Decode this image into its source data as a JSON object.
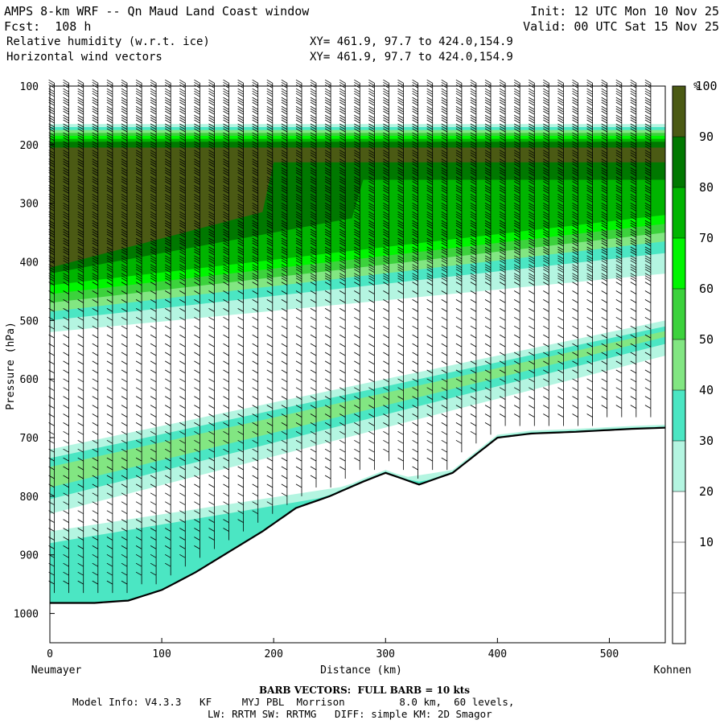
{
  "header": {
    "title": "AMPS 8-km WRF -- Qn Maud Land Coast window",
    "forecast": "Fcst:  108 h",
    "field1": "Relative humidity (w.r.t. ice)",
    "field2": "Horizontal wind vectors",
    "xy1": "XY= 461.9, 97.7 to 424.0,154.9",
    "xy2": "XY= 461.9, 97.7 to 424.0,154.9",
    "init": "Init: 12 UTC Mon 10 Nov 25",
    "valid": "Valid: 00 UTC Sat 15 Nov 25"
  },
  "footer": {
    "barb_note": "BARB VECTORS:  FULL BARB = 10 kts",
    "model_line1": "Model Info: V4.3.3   KF     MYJ PBL  Morrison         8.0 km,  60 levels,",
    "model_line2": "LW: RRTM SW: RRTMG   DIFF: simple KM: 2D Smagor"
  },
  "colors": {
    "bg": "#ffffff",
    "rh_10_30": "#ffffff",
    "rh_30_40": "#b4f5e1",
    "rh_40_50": "#4be6c3",
    "rh_50_60": "#82e682",
    "rh_60_70": "#3cd23c",
    "rh_70_80": "#00f500",
    "rh_80_90": "#00b400",
    "rh_90_100": "#007800",
    "rh_100": "#4b5a14",
    "terrain_line": "#000000"
  },
  "chart_data": {
    "type": "cross-section",
    "title": "Relative humidity (w.r.t. ice) and horizontal wind vectors",
    "xlabel": "Distance (km)",
    "ylabel": "Pressure (hPa)",
    "xlim": [
      0,
      550
    ],
    "ylim": [
      1050,
      100
    ],
    "x_ticks": [
      0,
      100,
      200,
      300,
      400,
      500
    ],
    "y_ticks": [
      100,
      200,
      300,
      400,
      500,
      600,
      700,
      800,
      900,
      1000
    ],
    "left_endpoint": "Neumayer",
    "right_endpoint": "Kohnen",
    "colorbar": {
      "unit": "%",
      "levels": [
        10,
        20,
        30,
        40,
        50,
        60,
        70,
        80,
        90,
        100
      ]
    },
    "terrain_surface_hPa": {
      "x": [
        0,
        40,
        70,
        100,
        130,
        160,
        190,
        220,
        250,
        280,
        300,
        330,
        360,
        380,
        400,
        430,
        470,
        520,
        550
      ],
      "p": [
        982,
        982,
        978,
        960,
        930,
        895,
        860,
        820,
        800,
        775,
        760,
        780,
        760,
        730,
        700,
        693,
        690,
        685,
        683
      ]
    },
    "rh_layers_description_pct": {
      "upper_moist_layer": {
        "p_top": 180,
        "p_bottom_left": 480,
        "p_bottom_right": 330,
        "max": 100
      },
      "mid_moist_band": {
        "p_top_left": 720,
        "p_top_right": 500,
        "max": 60
      },
      "low_moist_band": {
        "near_surface": true,
        "max": 50
      }
    }
  }
}
